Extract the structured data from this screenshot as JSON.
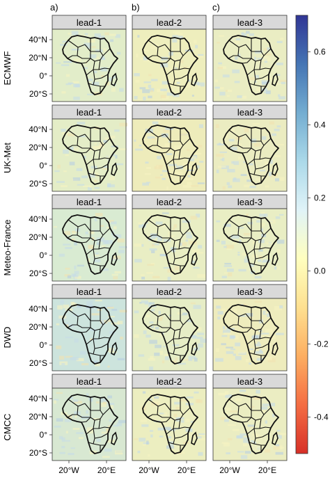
{
  "column_letters": [
    "a)",
    "b)",
    "c)"
  ],
  "models": [
    "ECMWF",
    "UK-Met",
    "Meteo-France",
    "DWD",
    "CMCC"
  ],
  "leads": [
    "lead-1",
    "lead-2",
    "lead-3"
  ],
  "lat_ticks": [
    "40°N",
    "20°N",
    "0°",
    "20°S"
  ],
  "lon_ticks": [
    "20°W",
    "20°E"
  ],
  "colorbar": {
    "ticks": [
      "0.6",
      "0.4",
      "0.2",
      "0.0",
      "-0.2",
      "-0.4"
    ],
    "range": [
      -0.5,
      0.7
    ],
    "colors": [
      "#d73027",
      "#f46d43",
      "#fdae61",
      "#fee090",
      "#ffffbf",
      "#e0f3f8",
      "#abd9e9",
      "#74add1",
      "#4575b4",
      "#313695"
    ]
  },
  "panel_background": {
    "ECMWF": [
      "#e2edc9",
      "#eeeebd",
      "#eaedc3"
    ],
    "UK-Met": [
      "#e4edc7",
      "#eeecbb",
      "#ebecc1"
    ],
    "Meteo-France": [
      "#d9ebd2",
      "#e9eec4",
      "#e9eec4"
    ],
    "DWD": [
      "#cde4dd",
      "#e6edc6",
      "#eeecbd"
    ],
    "CMCC": [
      "#d8e8d2",
      "#eceec0",
      "#ebedc2"
    ]
  }
}
